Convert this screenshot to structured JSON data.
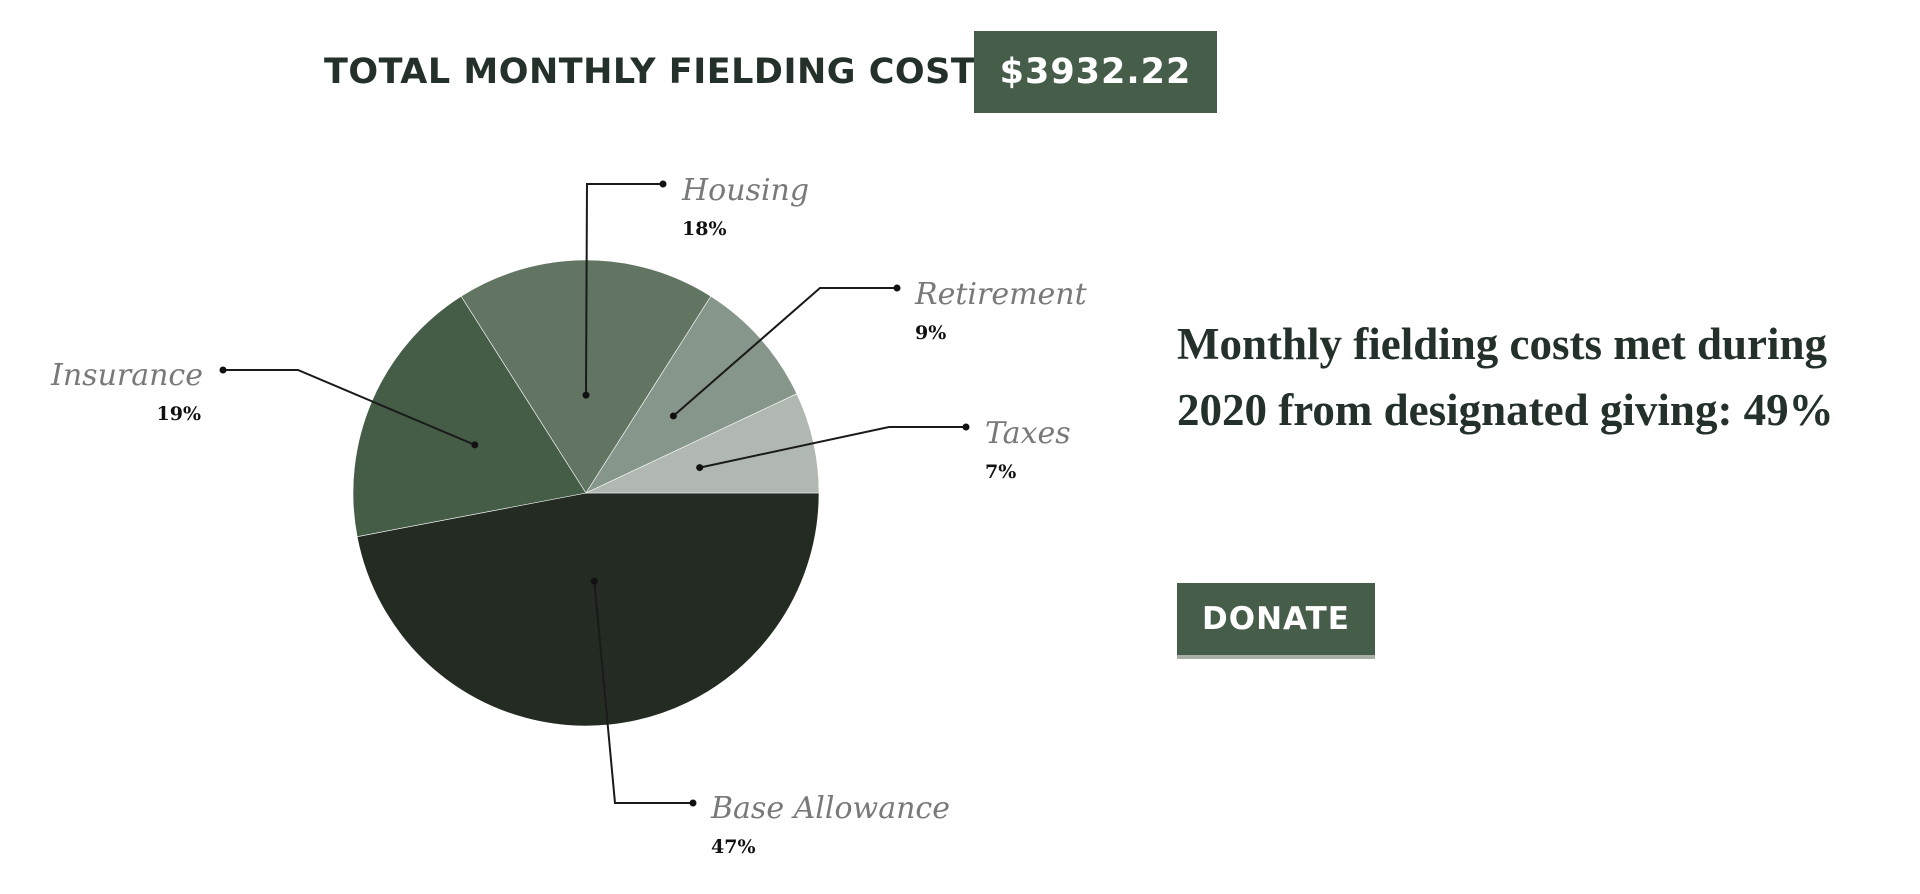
{
  "header": {
    "total_label": "TOTAL MONTHLY FIELDING COSTS",
    "total_value": "$3932.22"
  },
  "summary": {
    "headline": "Monthly fielding costs met during 2020 from designated giving: 49%"
  },
  "donate": {
    "label": "DONATE"
  },
  "colors": {
    "brand": "#465d4a",
    "text_dark": "#24302a",
    "label_gray": "#777a78"
  },
  "chart_data": {
    "type": "pie",
    "slices": [
      {
        "label": "Base Allowance",
        "value": 47,
        "display": "47%",
        "color": "#232b23"
      },
      {
        "label": "Insurance",
        "value": 19,
        "display": "19%",
        "color": "#455c47"
      },
      {
        "label": "Housing",
        "value": 18,
        "display": "18%",
        "color": "#627563"
      },
      {
        "label": "Retirement",
        "value": 9,
        "display": "9%",
        "color": "#87968a"
      },
      {
        "label": "Taxes",
        "value": 7,
        "display": "7%",
        "color": "#b0b8b1"
      }
    ]
  }
}
